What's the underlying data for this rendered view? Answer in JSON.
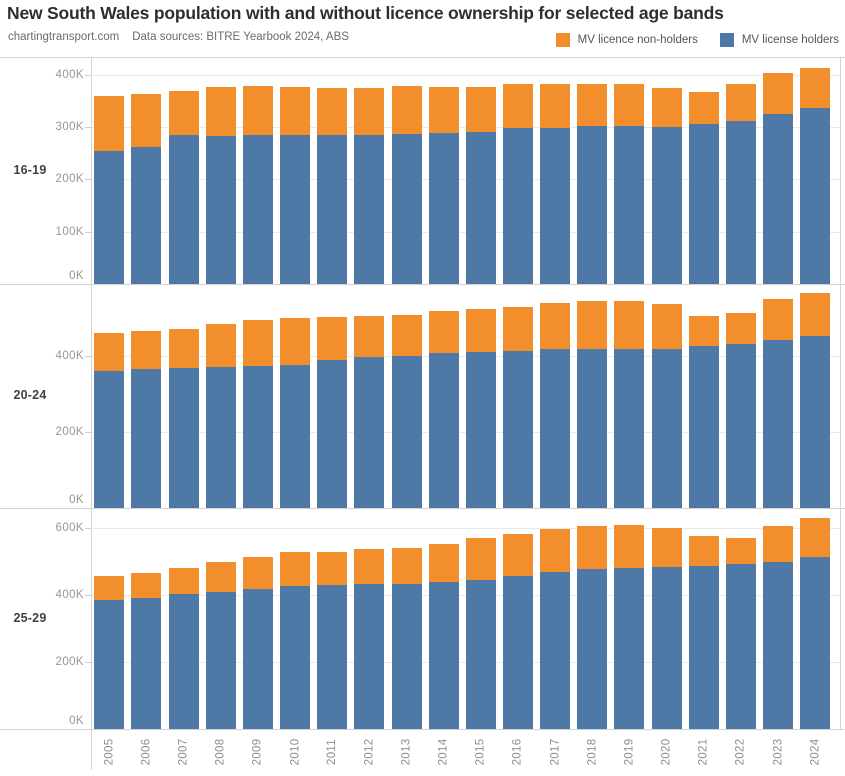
{
  "title": "New South Wales population with and without licence ownership for selected age bands",
  "subtitle": {
    "site": "chartingtransport.com",
    "sources": "Data sources: BITRE Yearbook 2024, ABS"
  },
  "legend": [
    {
      "label": "MV licence non-holders",
      "color": "#f28e2b",
      "series_key": "non_holders_k"
    },
    {
      "label": "MV license holders",
      "color": "#4e79a7",
      "series_key": "holders_k"
    }
  ],
  "colors": {
    "holders_blue": "#4e79a7",
    "non_holders_orange": "#f28e2b",
    "grid": "#e9e9e9",
    "frame": "#d4d4d4",
    "tick_text": "#969696"
  },
  "chart_data": {
    "type": "bar",
    "stacked": true,
    "unit": "thousands of people",
    "x": [
      2005,
      2006,
      2007,
      2008,
      2009,
      2010,
      2011,
      2012,
      2013,
      2014,
      2015,
      2016,
      2017,
      2018,
      2019,
      2020,
      2021,
      2022,
      2023,
      2024
    ],
    "legend_position": "top-right",
    "grid": true,
    "panels": [
      {
        "age_band": "16-19",
        "y_ticks_k": [
          0,
          100,
          200,
          300,
          400
        ],
        "y_tick_labels": [
          "0K",
          "100K",
          "200K",
          "300K",
          "400K"
        ],
        "y_max_k": 434,
        "series": [
          {
            "name": "MV license holders",
            "values_k": [
              255,
              261,
              284,
              283,
              285,
              284,
              285,
              285,
              286,
              288,
              290,
              298,
              299,
              303,
              303,
              301,
              306,
              311,
              325,
              337
            ]
          },
          {
            "name": "MV licence non-holders",
            "values_k": [
              105,
              102,
              85,
              93,
              94,
              92,
              89,
              89,
              91,
              88,
              86,
              84,
              85,
              81,
              81,
              75,
              62,
              70,
              78,
              77
            ]
          }
        ]
      },
      {
        "age_band": "20-24",
        "y_ticks_k": [
          0,
          200,
          400
        ],
        "y_tick_labels": [
          "0K",
          "200K",
          "400K"
        ],
        "y_max_k": 590,
        "series": [
          {
            "name": "MV license holders",
            "values_k": [
              361,
              367,
              370,
              372,
              374,
              376,
              390,
              398,
              400,
              409,
              412,
              414,
              418,
              420,
              420,
              418,
              427,
              433,
              442,
              453
            ]
          },
          {
            "name": "MV licence non-holders",
            "values_k": [
              99,
              100,
              102,
              112,
              121,
              123,
              112,
              107,
              109,
              110,
              113,
              116,
              121,
              126,
              127,
              119,
              78,
              81,
              107,
              114
            ]
          }
        ]
      },
      {
        "age_band": "25-29",
        "y_ticks_k": [
          0,
          200,
          400,
          600
        ],
        "y_tick_labels": [
          "0K",
          "200K",
          "400K",
          "600K"
        ],
        "y_max_k": 659,
        "series": [
          {
            "name": "MV license holders",
            "values_k": [
              385,
              390,
              402,
              408,
              418,
              426,
              430,
              432,
              433,
              438,
              444,
              457,
              469,
              477,
              481,
              484,
              487,
              493,
              499,
              514
            ]
          },
          {
            "name": "MV licence non-holders",
            "values_k": [
              72,
              74,
              77,
              89,
              95,
              100,
              99,
              104,
              106,
              113,
              125,
              126,
              129,
              129,
              127,
              116,
              88,
              79,
              107,
              116
            ]
          }
        ]
      }
    ]
  }
}
